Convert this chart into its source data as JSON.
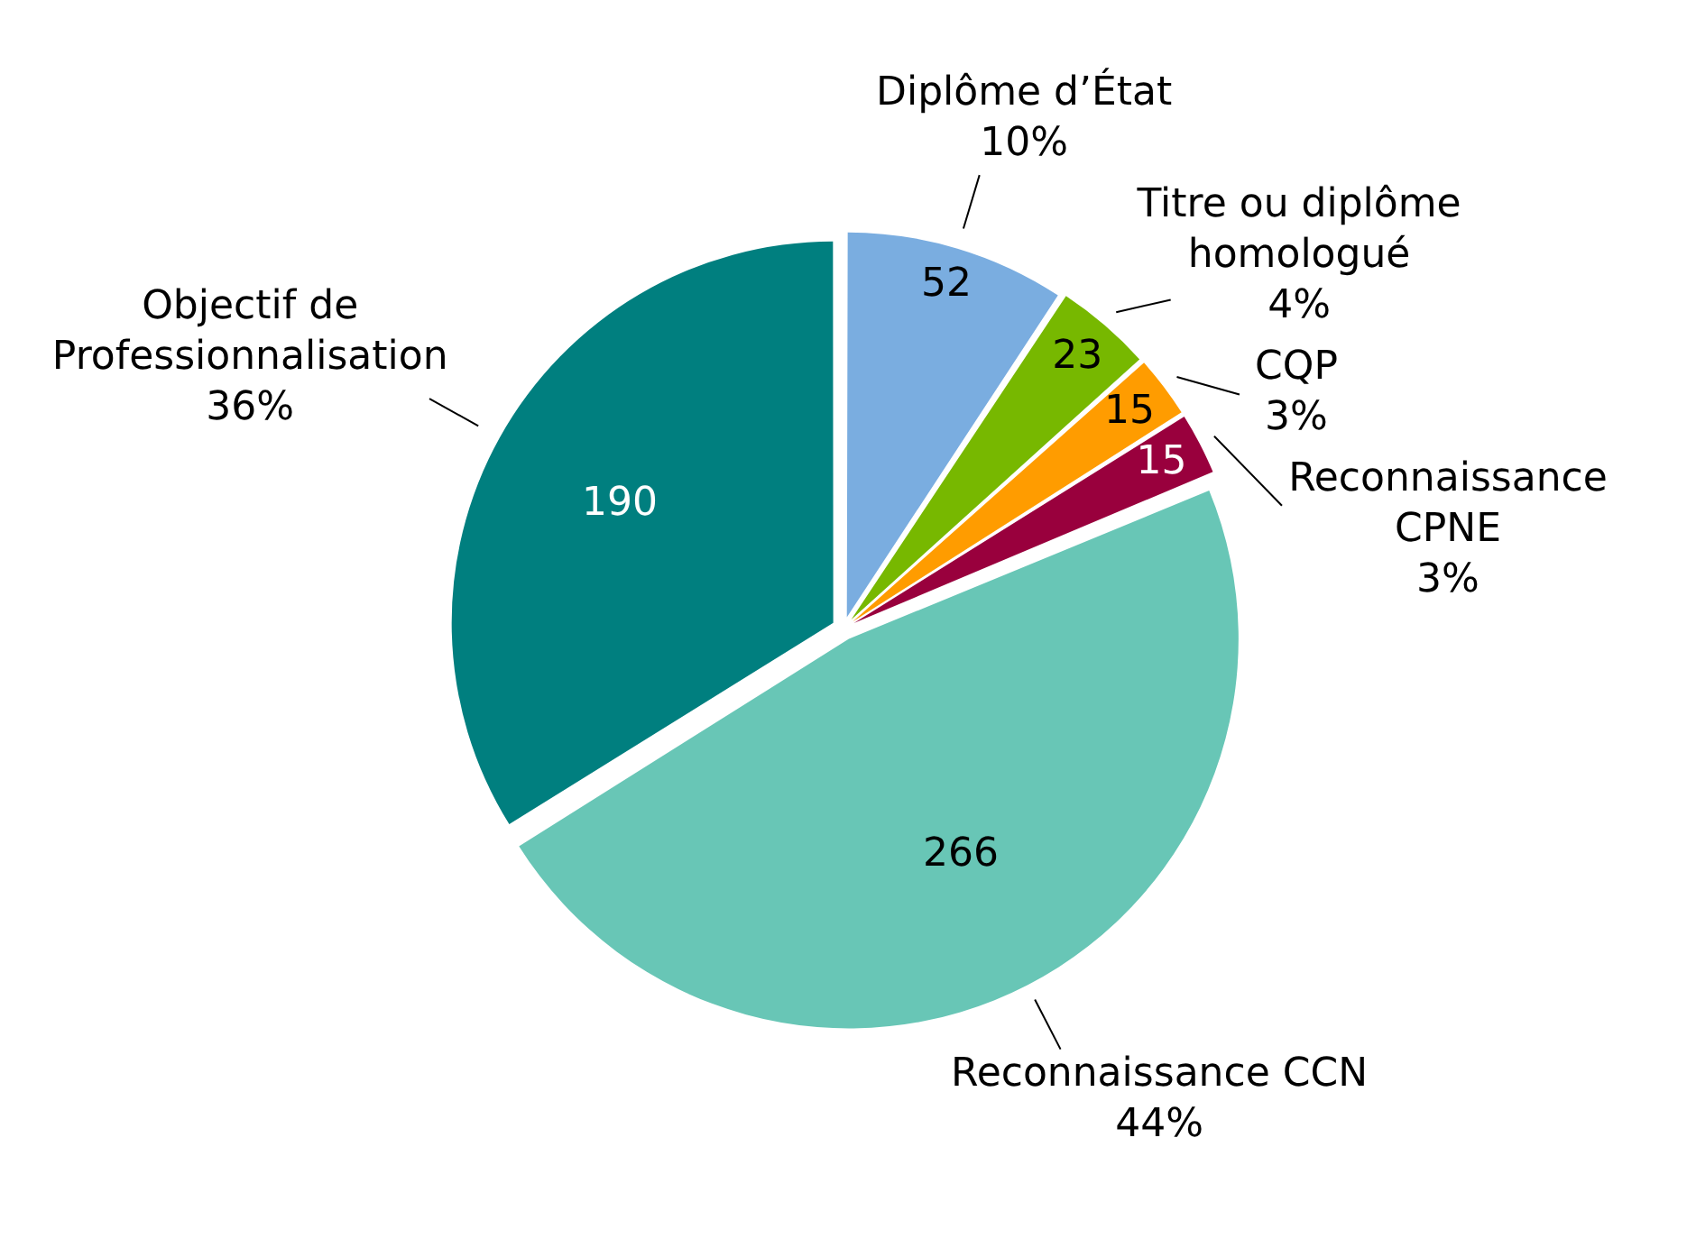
{
  "chart_data": {
    "type": "pie",
    "categories": [
      "Diplôme d’État",
      "Titre ou diplôme homologué",
      "CQP",
      "Reconnaissance CPNE",
      "Reconnaissance CCN",
      "Objectif de Professionnalisation"
    ],
    "values": [
      52,
      23,
      15,
      15,
      266,
      190
    ],
    "data_labels": true,
    "annotations": [
      {
        "text": "10%",
        "x": "Diplôme d’État"
      },
      {
        "text": "4%",
        "x": "Titre ou diplôme homologué"
      },
      {
        "text": "3%",
        "x": "CQP"
      },
      {
        "text": "3%",
        "x": "Reconnaissance CPNE"
      },
      {
        "text": "44%",
        "x": "Reconnaissance CCN"
      },
      {
        "text": "36%",
        "x": "Objectif de Professionnalisation"
      }
    ],
    "colors": [
      "#7aade0",
      "#77b800",
      "#ff9c00",
      "#99003d",
      "#68c6b6",
      "#007f7f"
    ],
    "legend": false
  }
}
